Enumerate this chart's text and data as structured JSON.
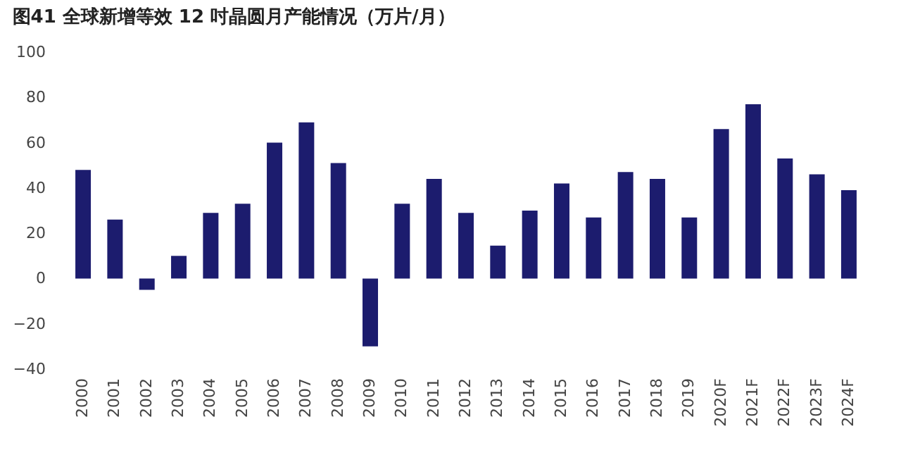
{
  "chart_data": {
    "type": "bar",
    "title": "图41  全球新增等效 12 吋晶圆月产能情况（万片/月）",
    "categories": [
      "2000",
      "2001",
      "2002",
      "2003",
      "2004",
      "2005",
      "2006",
      "2007",
      "2008",
      "2009",
      "2010",
      "2011",
      "2012",
      "2013",
      "2014",
      "2015",
      "2016",
      "2017",
      "2018",
      "2019",
      "2020F",
      "2021F",
      "2022F",
      "2023F",
      "2024F"
    ],
    "values": [
      48,
      26,
      -5,
      10,
      29,
      33,
      60,
      69,
      51,
      -30,
      33,
      44,
      29,
      14.5,
      30,
      42,
      27,
      47,
      44,
      27,
      66,
      77,
      53,
      46,
      39
    ],
    "color": "#1c1c6e",
    "ylim": [
      -40,
      100
    ],
    "yticks": [
      -40,
      -20,
      0,
      20,
      40,
      60,
      80,
      100
    ],
    "grid": false
  }
}
